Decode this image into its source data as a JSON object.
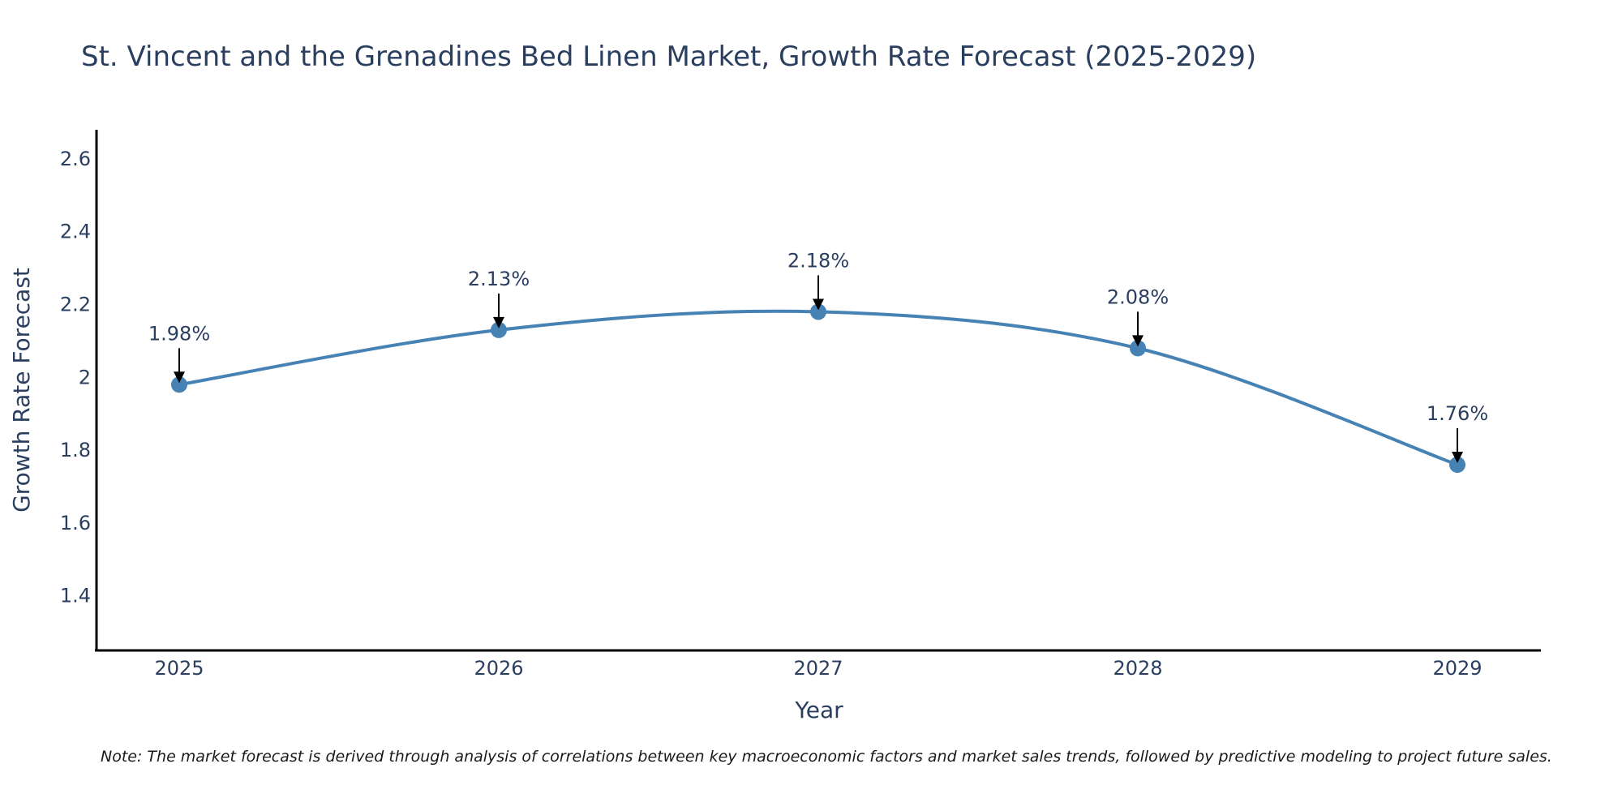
{
  "chart_data": {
    "type": "line",
    "title": "St. Vincent and the Grenadines Bed Linen Market, Growth Rate Forecast (2025-2029)",
    "xlabel": "Year",
    "ylabel": "Growth Rate Forecast",
    "categories": [
      "2025",
      "2026",
      "2027",
      "2028",
      "2029"
    ],
    "values": [
      1.98,
      2.13,
      2.18,
      2.08,
      1.76
    ],
    "data_labels": [
      "1.98%",
      "2.13%",
      "2.18%",
      "2.08%",
      "1.76%"
    ],
    "yticks": [
      1.4,
      1.6,
      1.8,
      2,
      2.2,
      2.4,
      2.6
    ],
    "ytick_labels": [
      "1.4",
      "1.6",
      "1.8",
      "2",
      "2.2",
      "2.4",
      "2.6"
    ],
    "ylim": [
      1.25,
      2.68
    ],
    "grid": false,
    "line_color": "#4682B4",
    "marker_color": "#4682B4",
    "annotation_color": "#000000",
    "note": "Note: The market forecast is derived through analysis of correlations between key macroeconomic factors and market sales trends, followed by predictive modeling to project future sales."
  }
}
